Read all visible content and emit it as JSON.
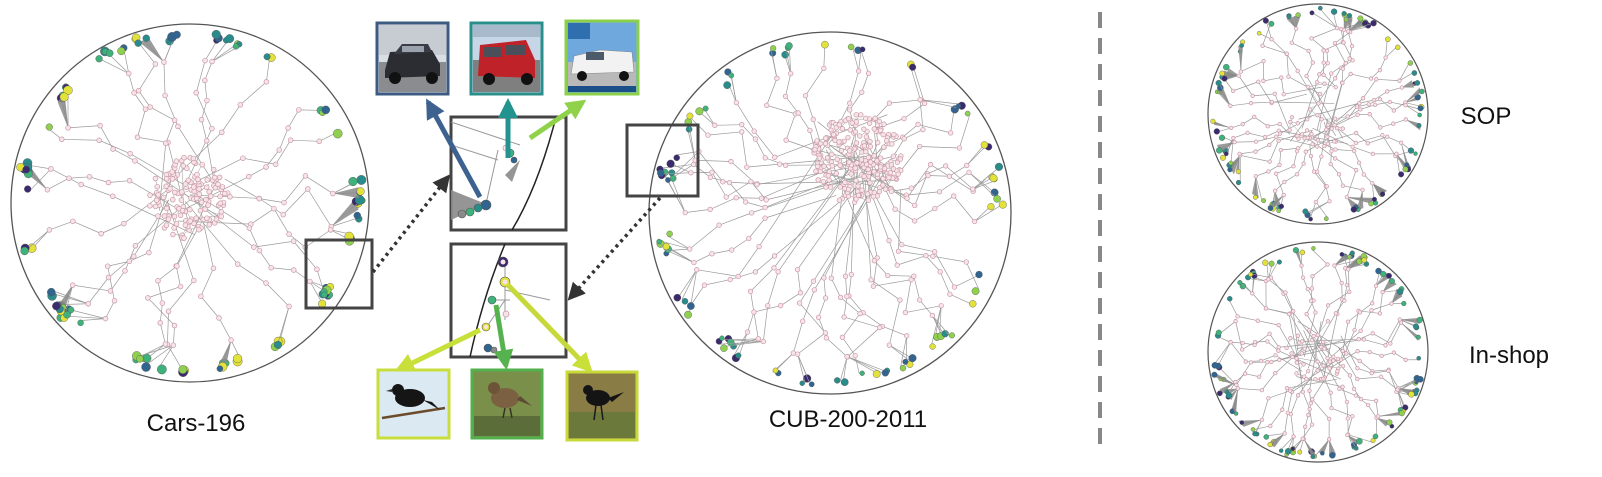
{
  "figure": {
    "labels": {
      "cars": "Cars-196",
      "cub": "CUB-200-2011",
      "sop": "SOP",
      "inshop": "In-shop"
    },
    "colors": {
      "inner_node_fill": "#f7e3e8",
      "inner_node_stroke": "#c99aa6",
      "edge": "#9a9a9a",
      "disk_border": "#555555",
      "zoom_box": "#444444",
      "dash_divider": "#888888",
      "leaf_palette": [
        "#3b2a6e",
        "#31648f",
        "#2a8c8a",
        "#3fb17a",
        "#8fd14f",
        "#e2e23a"
      ],
      "arrows_cars": [
        "#3e6290",
        "#22938f",
        "#8fd24a"
      ],
      "arrows_cub": [
        "#c9df3a",
        "#56b24e",
        "#c7d93a"
      ]
    },
    "thumbnails": {
      "cars": [
        {
          "icon": "dark-suv-photo",
          "border": "#3d5a80"
        },
        {
          "icon": "red-van-photo",
          "border": "#2a8f8a"
        },
        {
          "icon": "white-pickup-photo",
          "border": "#8cd04a"
        }
      ],
      "birds": [
        {
          "icon": "blackbird-on-branch-photo",
          "border": "#c7de3c"
        },
        {
          "icon": "brown-bird-on-grass-photo",
          "border": "#52b04d"
        },
        {
          "icon": "grackle-on-grass-photo",
          "border": "#c8da3a"
        }
      ]
    }
  }
}
